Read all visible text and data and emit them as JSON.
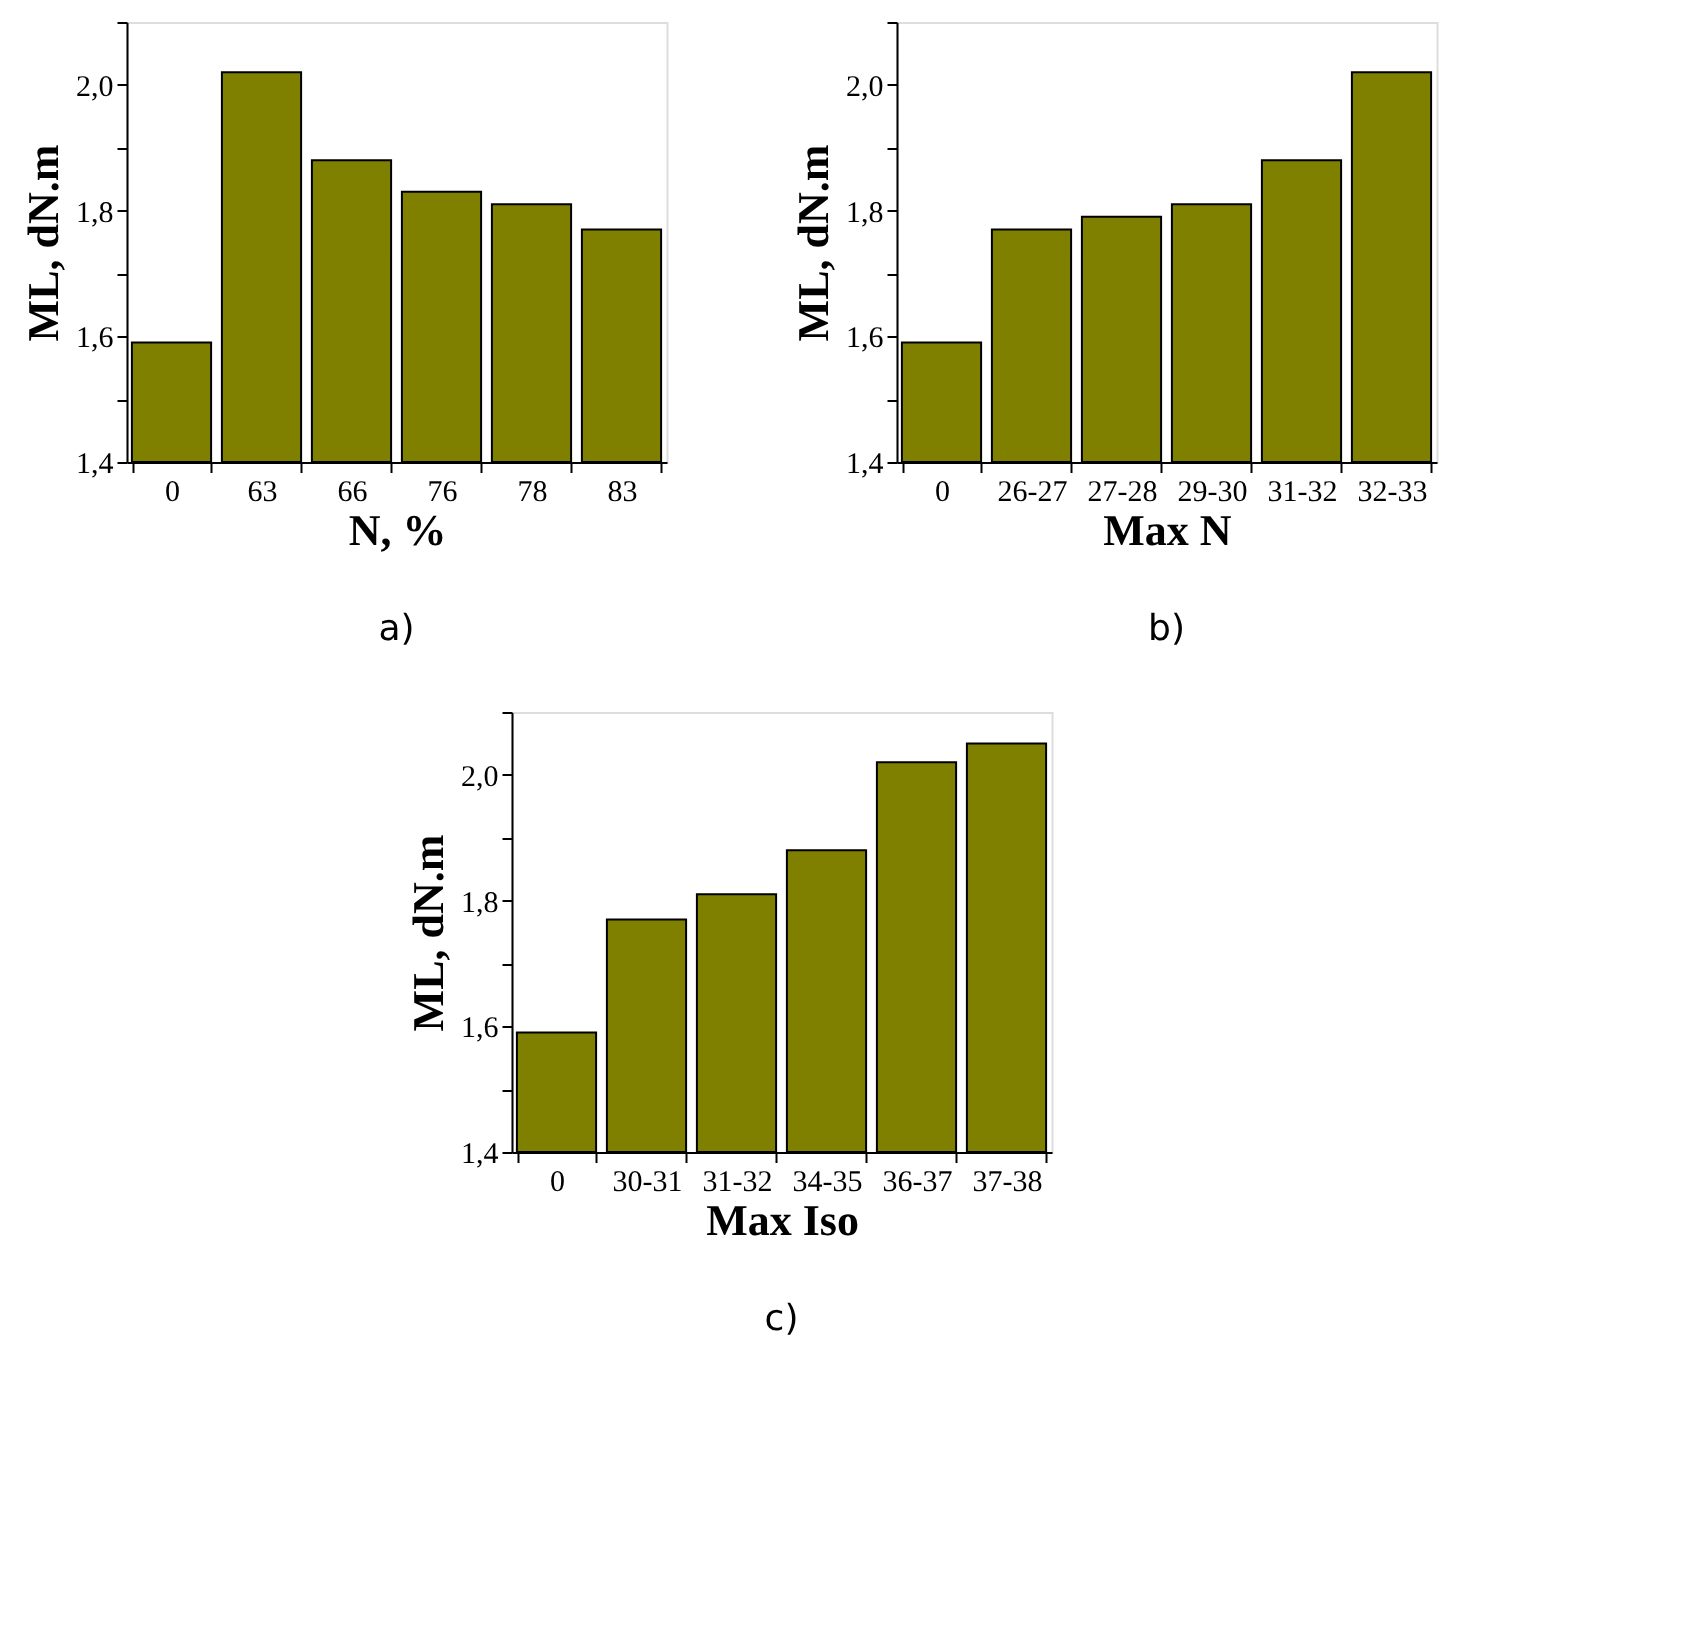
{
  "chart_data": [
    {
      "type": "bar",
      "categories": [
        "0",
        "63",
        "66",
        "76",
        "78",
        "83"
      ],
      "values": [
        1.59,
        2.02,
        1.88,
        1.83,
        1.81,
        1.77
      ],
      "color": "#808000",
      "xlabel": "N, %",
      "ylabel": "ML, dN.m",
      "ylim": [
        1.4,
        2.1
      ],
      "yticks": [
        {
          "value": 1.4,
          "label": "1,4"
        },
        {
          "value": 1.5,
          "label": null
        },
        {
          "value": 1.6,
          "label": "1,6"
        },
        {
          "value": 1.7,
          "label": null
        },
        {
          "value": 1.8,
          "label": "1,8"
        },
        {
          "value": 1.9,
          "label": null
        },
        {
          "value": 2.0,
          "label": "2,0"
        },
        {
          "value": 2.1,
          "label": null
        }
      ],
      "annotations": [
        "a)"
      ]
    },
    {
      "type": "bar",
      "categories": [
        "0",
        "26-27",
        "27-28",
        "29-30",
        "31-32",
        "32-33"
      ],
      "values": [
        1.59,
        1.77,
        1.79,
        1.81,
        1.88,
        2.02
      ],
      "color": "#808000",
      "xlabel": "Max N",
      "ylabel": "ML, dN.m",
      "ylim": [
        1.4,
        2.1
      ],
      "yticks": [
        {
          "value": 1.4,
          "label": "1,4"
        },
        {
          "value": 1.5,
          "label": null
        },
        {
          "value": 1.6,
          "label": "1,6"
        },
        {
          "value": 1.7,
          "label": null
        },
        {
          "value": 1.8,
          "label": "1,8"
        },
        {
          "value": 1.9,
          "label": null
        },
        {
          "value": 2.0,
          "label": "2,0"
        },
        {
          "value": 2.1,
          "label": null
        }
      ],
      "annotations": [
        "b)"
      ]
    },
    {
      "type": "bar",
      "categories": [
        "0",
        "30-31",
        "31-32",
        "34-35",
        "36-37",
        "37-38"
      ],
      "values": [
        1.59,
        1.77,
        1.81,
        1.88,
        2.02,
        2.05
      ],
      "color": "#808000",
      "xlabel": "Max Iso",
      "ylabel": "ML, dN.m",
      "ylim": [
        1.4,
        2.1
      ],
      "yticks": [
        {
          "value": 1.4,
          "label": "1,4"
        },
        {
          "value": 1.5,
          "label": null
        },
        {
          "value": 1.6,
          "label": "1,6"
        },
        {
          "value": 1.7,
          "label": null
        },
        {
          "value": 1.8,
          "label": "1,8"
        },
        {
          "value": 1.9,
          "label": null
        },
        {
          "value": 2.0,
          "label": "2,0"
        },
        {
          "value": 2.1,
          "label": null
        }
      ],
      "annotations": [
        "c)"
      ]
    }
  ]
}
